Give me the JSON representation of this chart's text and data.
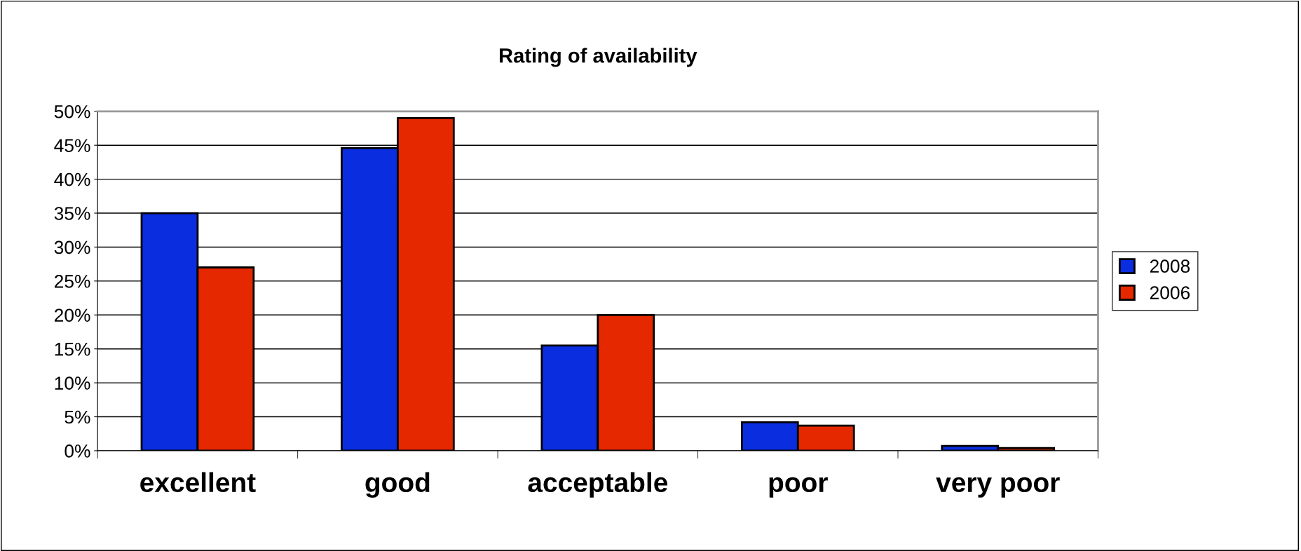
{
  "chart_data": {
    "type": "bar",
    "title": "Rating of availability",
    "categories": [
      "excellent",
      "good",
      "acceptable",
      "poor",
      "very poor"
    ],
    "series": [
      {
        "name": "2008",
        "color": "#0a2de0",
        "values": [
          35.0,
          44.6,
          15.5,
          4.2,
          0.7
        ]
      },
      {
        "name": "2006",
        "color": "#e52800",
        "values": [
          27.0,
          49.0,
          20.0,
          3.7,
          0.4
        ]
      }
    ],
    "ylim": [
      0,
      50
    ],
    "yticks": [
      {
        "value": 0,
        "label": "0%"
      },
      {
        "value": 5,
        "label": "5%"
      },
      {
        "value": 10,
        "label": "10%"
      },
      {
        "value": 15,
        "label": "15%"
      },
      {
        "value": 20,
        "label": "20%"
      },
      {
        "value": 25,
        "label": "25%"
      },
      {
        "value": 30,
        "label": "30%"
      },
      {
        "value": 35,
        "label": "35%"
      },
      {
        "value": 40,
        "label": "40%"
      },
      {
        "value": 45,
        "label": "45%"
      },
      {
        "value": 50,
        "label": "50%"
      }
    ],
    "grid": "y",
    "legend": "right"
  }
}
